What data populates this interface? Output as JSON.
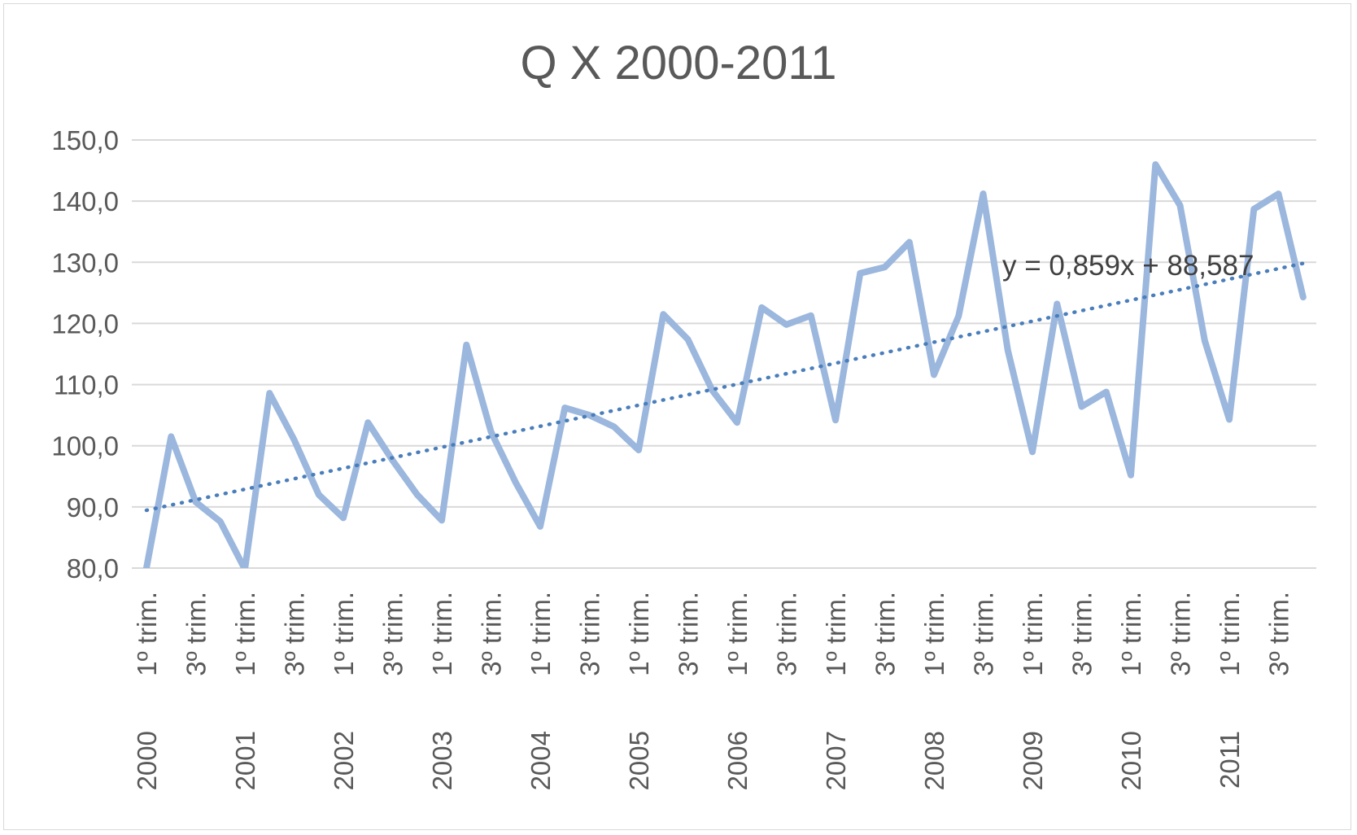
{
  "chart_data": {
    "type": "line",
    "title": "Q X 2000-2011",
    "xlabel": "",
    "ylabel": "",
    "ylim": [
      80,
      150
    ],
    "yticks": [
      "80,0",
      "90,0",
      "100,0",
      "110,0",
      "120,0",
      "130,0",
      "140,0",
      "150,0"
    ],
    "grid": true,
    "legend": "none",
    "quarter_labels": [
      "1º trim.",
      "3º trim."
    ],
    "years": [
      "2000",
      "2001",
      "2002",
      "2003",
      "2004",
      "2005",
      "2006",
      "2007",
      "2008",
      "2009",
      "2010",
      "2011"
    ],
    "series": [
      {
        "name": "",
        "color": "#9bb7dd",
        "values": [
          80.0,
          101.5,
          90.8,
          87.6,
          79.8,
          108.6,
          101.0,
          92.0,
          88.2,
          103.8,
          97.6,
          92.0,
          87.8,
          116.5,
          102.3,
          94.0,
          86.8,
          106.2,
          105.0,
          103.1,
          99.3,
          121.5,
          117.4,
          109.0,
          103.8,
          122.6,
          119.8,
          121.3,
          104.2,
          128.2,
          129.2,
          133.3,
          111.6,
          121.2,
          141.2,
          115.6,
          99.0,
          123.2,
          106.4,
          108.8,
          95.2,
          146.0,
          139.3,
          117.2,
          104.3,
          138.7,
          141.2,
          124.3
        ]
      }
    ],
    "trendline": {
      "type": "linear",
      "style": "dotted",
      "color": "#4a7ebb",
      "slope": 0.859,
      "intercept": 88.587,
      "equation": "y = 0,859x + 88,587"
    }
  }
}
